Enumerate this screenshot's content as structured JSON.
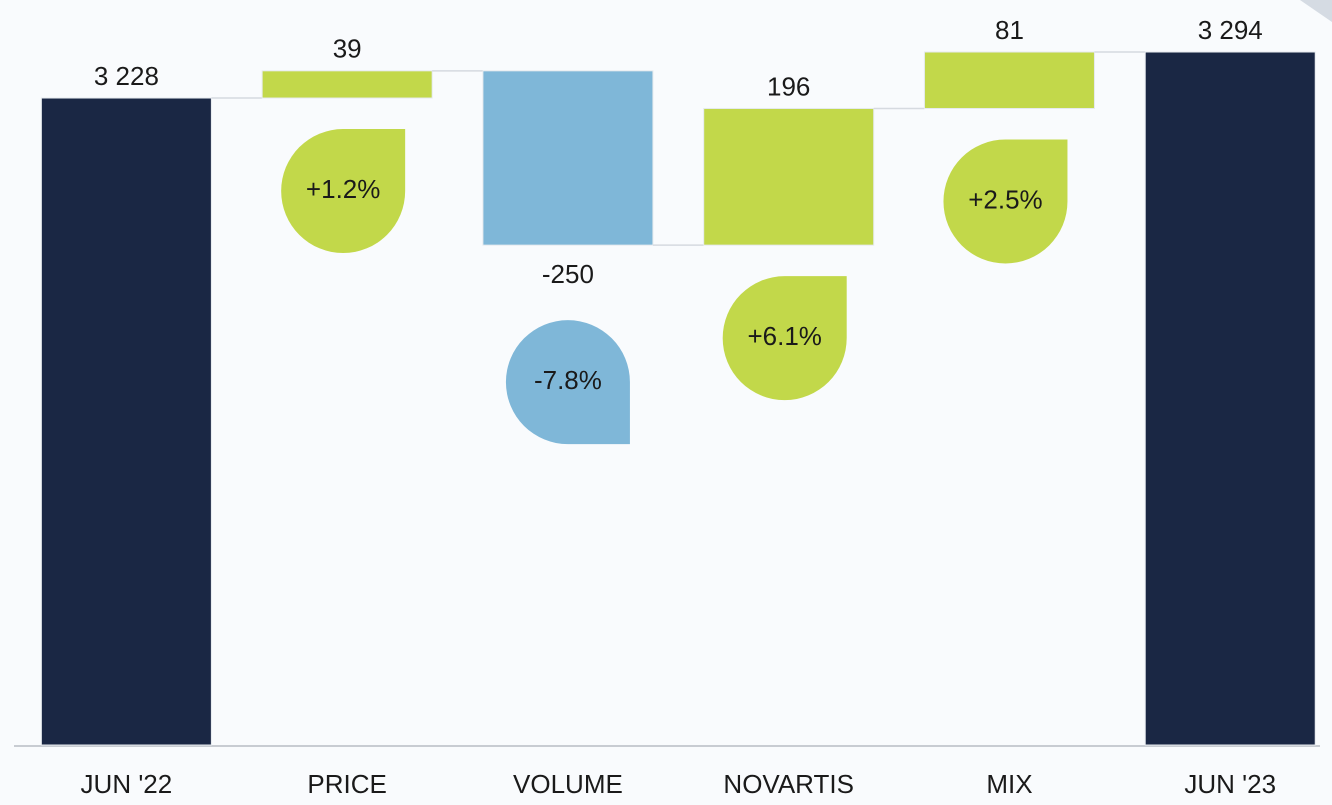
{
  "chart_data": {
    "type": "waterfall",
    "categories": [
      "JUN '22",
      "PRICE",
      "VOLUME",
      "NOVARTIS",
      "MIX",
      "JUN '23"
    ],
    "values": [
      3228,
      39,
      -250,
      196,
      81,
      3294
    ],
    "value_labels": [
      "3 228",
      "39",
      "-250",
      "196",
      "81",
      "3 294"
    ],
    "totals": [
      true,
      false,
      false,
      false,
      false,
      true
    ],
    "changes": [
      null,
      1.2,
      -7.8,
      6.1,
      2.5,
      null
    ],
    "change_labels": [
      null,
      "+1.2%",
      "-7.8%",
      "+6.1%",
      "+2.5%",
      null
    ],
    "colors": {
      "total": "#1a2744",
      "increase": "#c2d84a",
      "decrease": "#7fb7d8"
    },
    "ylim": [
      2300,
      3360
    ]
  }
}
